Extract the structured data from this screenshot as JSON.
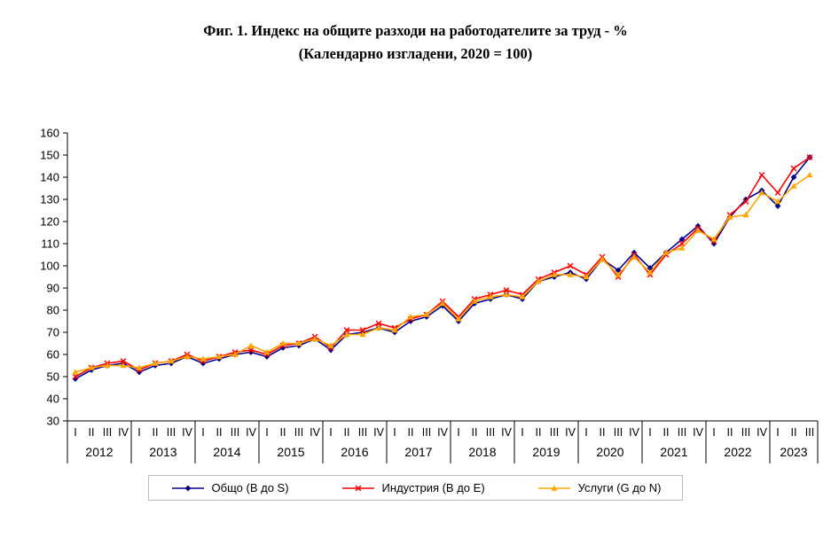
{
  "title": {
    "line1": "Фиг. 1. Индекс на общите разходи на работодателите за труд - %",
    "line2": "(Календарно изгладени, 2020 = 100)"
  },
  "chart_data": {
    "type": "line",
    "title": "Фиг. 1. Индекс на общите разходи на работодателите за труд - %",
    "subtitle": "(Календарно изгладени, 2020 = 100)",
    "xlabel": "",
    "ylabel": "",
    "ylim": [
      30,
      160
    ],
    "ytick_step": 10,
    "grid": false,
    "legend_position": "bottom",
    "axis_color": "#000000",
    "years": [
      {
        "label": "2012",
        "quarters": [
          "I",
          "II",
          "III",
          "IV"
        ]
      },
      {
        "label": "2013",
        "quarters": [
          "I",
          "II",
          "III",
          "IV"
        ]
      },
      {
        "label": "2014",
        "quarters": [
          "I",
          "II",
          "III",
          "IV"
        ]
      },
      {
        "label": "2015",
        "quarters": [
          "I",
          "II",
          "III",
          "IV"
        ]
      },
      {
        "label": "2016",
        "quarters": [
          "I",
          "II",
          "III",
          "IV"
        ]
      },
      {
        "label": "2017",
        "quarters": [
          "I",
          "II",
          "III",
          "IV"
        ]
      },
      {
        "label": "2018",
        "quarters": [
          "I",
          "II",
          "III",
          "IV"
        ]
      },
      {
        "label": "2019",
        "quarters": [
          "I",
          "II",
          "III",
          "IV"
        ]
      },
      {
        "label": "2020",
        "quarters": [
          "I",
          "II",
          "III",
          "IV"
        ]
      },
      {
        "label": "2021",
        "quarters": [
          "I",
          "II",
          "III",
          "IV"
        ]
      },
      {
        "label": "2022",
        "quarters": [
          "I",
          "II",
          "III",
          "IV"
        ]
      },
      {
        "label": "2023",
        "quarters": [
          "I",
          "II",
          "III"
        ]
      }
    ],
    "series": [
      {
        "name": "Общо  (B до S)",
        "color": "#00008B",
        "marker": "diamond",
        "values": [
          49,
          53,
          55,
          56,
          52,
          55,
          56,
          59,
          56,
          58,
          60,
          61,
          59,
          63,
          64,
          67,
          62,
          69,
          70,
          72,
          70,
          75,
          77,
          82,
          75,
          83,
          85,
          87,
          85,
          93,
          95,
          97,
          94,
          103,
          98,
          106,
          99,
          106,
          112,
          118,
          110,
          122,
          130,
          134,
          127,
          140,
          149
        ]
      },
      {
        "name": "Индустрия (B до E)",
        "color": "#FF0000",
        "marker": "x",
        "values": [
          50,
          54,
          56,
          57,
          53,
          56,
          57,
          60,
          57,
          59,
          61,
          62,
          60,
          64,
          65,
          68,
          63,
          71,
          71,
          74,
          72,
          76,
          78,
          84,
          77,
          85,
          87,
          89,
          87,
          94,
          97,
          100,
          96,
          104,
          95,
          105,
          96,
          105,
          110,
          117,
          111,
          123,
          129,
          141,
          133,
          144,
          149
        ]
      },
      {
        "name": "Услуги (G до N)",
        "color": "#FFA500",
        "marker": "triangle",
        "values": [
          52,
          54,
          55,
          55,
          54,
          56,
          57,
          59,
          58,
          59,
          60,
          64,
          61,
          65,
          65,
          67,
          64,
          69,
          69,
          72,
          71,
          77,
          78,
          83,
          76,
          84,
          86,
          87,
          86,
          93,
          96,
          96,
          95,
          103,
          96,
          104,
          97,
          106,
          108,
          116,
          112,
          122,
          123,
          133,
          129,
          136,
          141
        ]
      }
    ]
  }
}
